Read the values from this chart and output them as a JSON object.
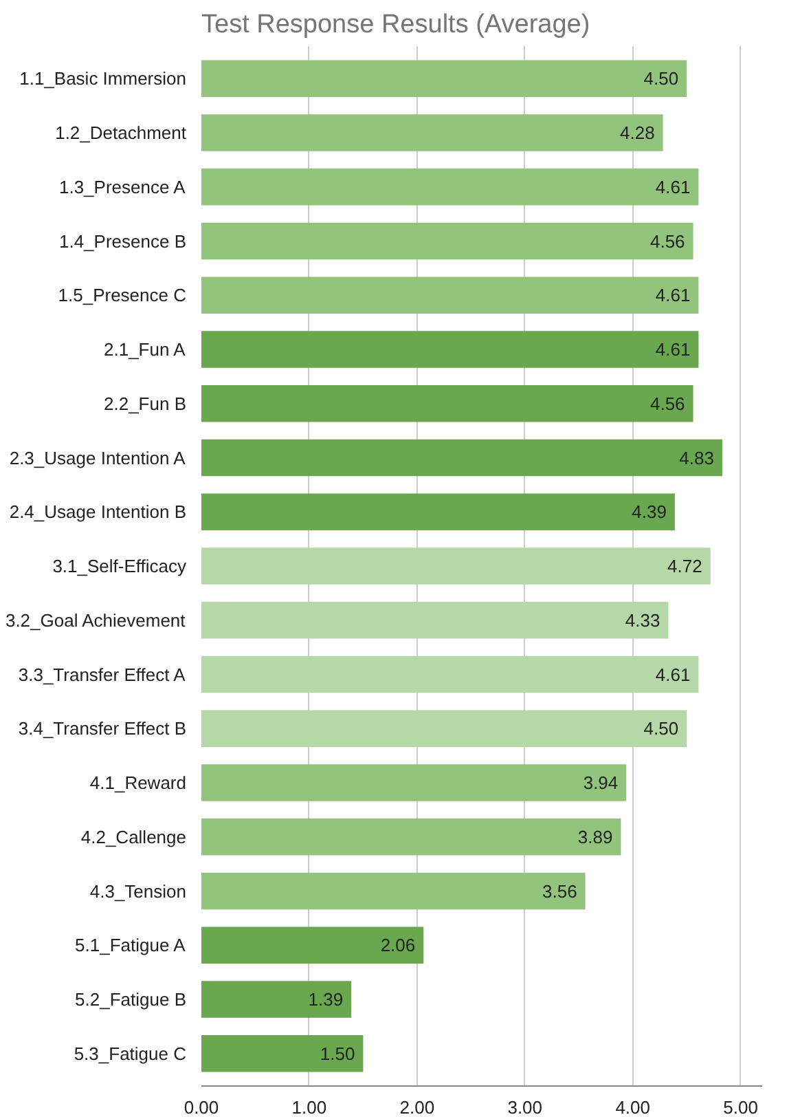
{
  "chart_data": {
    "type": "bar",
    "orientation": "horizontal",
    "title": "Test Response Results (Average)",
    "categories": [
      "1.1_Basic Immersion",
      "1.2_Detachment",
      "1.3_Presence A",
      "1.4_Presence B",
      "1.5_Presence C",
      "2.1_Fun A",
      "2.2_Fun B",
      "2.3_Usage Intention A",
      "2.4_Usage Intention B",
      "3.1_Self-Efficacy",
      "3.2_Goal Achievement",
      "3.3_Transfer Effect A",
      "3.4_Transfer Effect B",
      "4.1_Reward",
      "4.2_Callenge",
      "4.3_Tension",
      "5.1_Fatigue A",
      "5.2_Fatigue B",
      "5.3_Fatigue C"
    ],
    "values": [
      4.5,
      4.28,
      4.61,
      4.56,
      4.61,
      4.61,
      4.56,
      4.83,
      4.39,
      4.72,
      4.33,
      4.61,
      4.5,
      3.94,
      3.89,
      3.56,
      2.06,
      1.39,
      1.5
    ],
    "colors": [
      "#93c47d",
      "#93c47d",
      "#93c47d",
      "#93c47d",
      "#93c47d",
      "#6aa84f",
      "#6aa84f",
      "#6aa84f",
      "#6aa84f",
      "#b6d7a8",
      "#b6d7a8",
      "#b6d7a8",
      "#b6d7a8",
      "#93c47d",
      "#93c47d",
      "#93c47d",
      "#6aa84f",
      "#6aa84f",
      "#6aa84f"
    ],
    "xlim": [
      0,
      5.2
    ],
    "xticks": [
      {
        "value": 0,
        "label": "0.00"
      },
      {
        "value": 1,
        "label": "1.00"
      },
      {
        "value": 2,
        "label": "2.00"
      },
      {
        "value": 3,
        "label": "3.00"
      },
      {
        "value": 4,
        "label": "4.00"
      },
      {
        "value": 5,
        "label": "5.00"
      }
    ],
    "value_labels": [
      "4.50",
      "4.28",
      "4.61",
      "4.56",
      "4.61",
      "4.61",
      "4.56",
      "4.83",
      "4.39",
      "4.72",
      "4.33",
      "4.61",
      "4.50",
      "3.94",
      "3.89",
      "3.56",
      "2.06",
      "1.39",
      "1.50"
    ],
    "grid": "x"
  }
}
